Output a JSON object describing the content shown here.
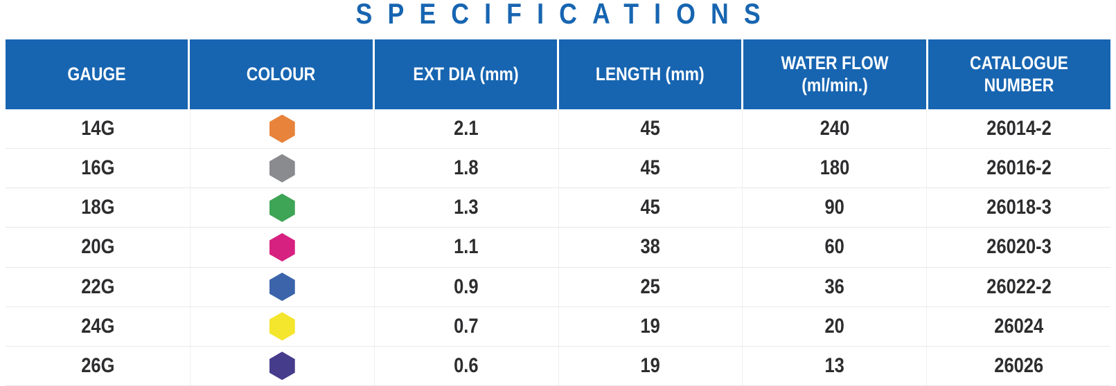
{
  "title": "SPECIFICATIONS",
  "colors": {
    "header_blue": "#1765B1",
    "body_text": "#2D2D2F",
    "row_divider": "#E8E8E8",
    "column_divider": "#EFEFEF"
  },
  "table": {
    "headers": [
      "GAUGE",
      "COLOUR",
      "EXT DIA (mm)",
      "LENGTH (mm)",
      "WATER FLOW (ml/min.)",
      "CATALOGUE NUMBER"
    ],
    "rows": [
      {
        "gauge": "14G",
        "colour": "orange",
        "colour_hex": "#E8833C",
        "ext_dia": "2.1",
        "length": "45",
        "water_flow": "240",
        "catalogue_number": "26014-2"
      },
      {
        "gauge": "16G",
        "colour": "grey",
        "colour_hex": "#8A8B8F",
        "ext_dia": "1.8",
        "length": "45",
        "water_flow": "180",
        "catalogue_number": "26016-2"
      },
      {
        "gauge": "18G",
        "colour": "green",
        "colour_hex": "#3EA456",
        "ext_dia": "1.3",
        "length": "45",
        "water_flow": "90",
        "catalogue_number": "26018-3"
      },
      {
        "gauge": "20G",
        "colour": "magenta",
        "colour_hex": "#D62180",
        "ext_dia": "1.1",
        "length": "38",
        "water_flow": "60",
        "catalogue_number": "26020-3"
      },
      {
        "gauge": "22G",
        "colour": "blue",
        "colour_hex": "#3B64AA",
        "ext_dia": "0.9",
        "length": "25",
        "water_flow": "36",
        "catalogue_number": "26022-2"
      },
      {
        "gauge": "24G",
        "colour": "yellow",
        "colour_hex": "#F4E52D",
        "ext_dia": "0.7",
        "length": "19",
        "water_flow": "20",
        "catalogue_number": "26024"
      },
      {
        "gauge": "26G",
        "colour": "purple",
        "colour_hex": "#463C8C",
        "ext_dia": "0.6",
        "length": "19",
        "water_flow": "13",
        "catalogue_number": "26026"
      }
    ]
  }
}
